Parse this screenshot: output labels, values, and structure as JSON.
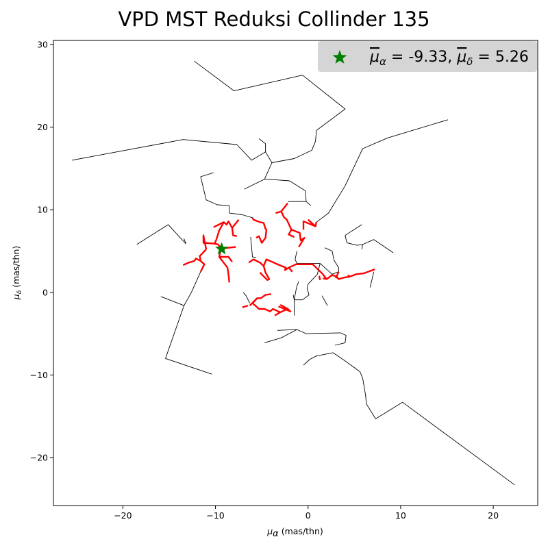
{
  "chart_data": {
    "type": "line",
    "title": "VPD MST Reduksi Collinder 135",
    "xlabel_symbol": "μ",
    "xlabel_sub": "α",
    "xlabel_unit": "(mas/thn)",
    "ylabel_symbol": "μ",
    "ylabel_sub": "δ",
    "ylabel_unit": "(mas/thn)",
    "xlim": [
      -27.5,
      24.8
    ],
    "ylim": [
      -25.8,
      30.5
    ],
    "xticks": [
      -20,
      -10,
      0,
      10,
      20
    ],
    "yticks": [
      -20,
      -10,
      0,
      10,
      20,
      30
    ],
    "xtick_labels": [
      "−20",
      "−10",
      "0",
      "10",
      "20"
    ],
    "ytick_labels": [
      "−20",
      "−10",
      "0",
      "10",
      "20",
      "30"
    ],
    "grid": false,
    "legend_position": "top-right",
    "legend": {
      "pma_label": "μ",
      "pma_sub": "α",
      "pma_value": "-9.33",
      "pmd_label": "μ",
      "pmd_sub": "δ",
      "pmd_value": "5.26"
    },
    "colors": {
      "outer_edges": "#000000",
      "core_edges": "#ff0000",
      "center_marker": "#008000",
      "legend_bg": "#d3d3d3"
    },
    "center": {
      "x": -9.33,
      "y": 5.26
    },
    "outer_edges": [
      [
        [
          -12.3,
          28.0
        ],
        [
          -8.0,
          24.4
        ],
        [
          -0.6,
          26.3
        ],
        [
          4.0,
          22.2
        ],
        [
          0.9,
          19.6
        ],
        [
          0.8,
          18.3
        ],
        [
          0.4,
          17.2
        ],
        [
          -1.5,
          16.2
        ],
        [
          -3.9,
          15.7
        ],
        [
          -4.6,
          17.0
        ],
        [
          -6.1,
          16.0
        ],
        [
          -7.7,
          17.9
        ],
        [
          -13.5,
          18.5
        ],
        [
          -25.5,
          16.0
        ]
      ],
      [
        [
          -3.9,
          15.7
        ],
        [
          -4.7,
          13.7
        ],
        [
          -6.9,
          12.5
        ]
      ],
      [
        [
          -4.6,
          17.0
        ],
        [
          -4.6,
          18.0
        ],
        [
          -5.3,
          18.6
        ]
      ],
      [
        [
          -4.7,
          13.7
        ],
        [
          -3.2,
          13.6
        ],
        [
          -2.0,
          13.5
        ],
        [
          -0.3,
          12.3
        ],
        [
          -0.2,
          11.0
        ],
        [
          0.3,
          10.5
        ]
      ],
      [
        [
          -10.2,
          14.5
        ],
        [
          -11.6,
          14.0
        ],
        [
          -11.0,
          11.2
        ],
        [
          -9.8,
          10.6
        ],
        [
          -8.5,
          10.5
        ],
        [
          -8.5,
          9.6
        ]
      ],
      [
        [
          -0.2,
          11.0
        ],
        [
          -2.2,
          11.0
        ]
      ],
      [
        [
          15.1,
          20.9
        ],
        [
          8.6,
          18.7
        ],
        [
          5.9,
          17.4
        ],
        [
          4.0,
          12.9
        ],
        [
          2.2,
          9.6
        ],
        [
          0.9,
          8.5
        ]
      ],
      [
        [
          5.8,
          8.2
        ],
        [
          4.0,
          6.9
        ]
      ],
      [
        [
          4.0,
          6.9
        ],
        [
          4.2,
          6.0
        ]
      ],
      [
        [
          4.2,
          6.0
        ],
        [
          5.3,
          5.7
        ],
        [
          5.9,
          5.8
        ],
        [
          7.1,
          6.4
        ],
        [
          9.2,
          4.8
        ]
      ],
      [
        [
          5.8,
          5.2
        ],
        [
          5.9,
          5.8
        ]
      ],
      [
        [
          1.8,
          5.4
        ],
        [
          2.6,
          5.0
        ],
        [
          2.8,
          3.9
        ],
        [
          3.3,
          3.0
        ],
        [
          3.3,
          2.5
        ]
      ],
      [
        [
          3.3,
          2.5
        ],
        [
          2.6,
          2.2
        ]
      ],
      [
        [
          2.6,
          2.2
        ],
        [
          1.3,
          3.5
        ],
        [
          -1.2,
          3.5
        ]
      ],
      [
        [
          7.1,
          2.5
        ],
        [
          6.7,
          0.6
        ]
      ],
      [
        [
          -13.4,
          6.5
        ],
        [
          -13.2,
          5.9
        ],
        [
          -13.8,
          6.6
        ],
        [
          -15.1,
          8.2
        ],
        [
          -18.5,
          5.8
        ]
      ],
      [
        [
          -11.6,
          2.5
        ],
        [
          -12.6,
          0.0
        ],
        [
          -13.4,
          -1.6
        ],
        [
          -15.9,
          -0.5
        ]
      ],
      [
        [
          -13.4,
          -1.6
        ],
        [
          -15.4,
          -8.0
        ],
        [
          -10.4,
          -9.9
        ]
      ],
      [
        [
          -8.5,
          9.6
        ],
        [
          -7.1,
          9.4
        ],
        [
          -5.9,
          9.0
        ]
      ],
      [
        [
          -6.2,
          6.7
        ],
        [
          -6.0,
          4.3
        ],
        [
          -5.6,
          4.2
        ]
      ],
      [
        [
          -3.3,
          -4.6
        ],
        [
          -1.2,
          -4.5
        ],
        [
          -0.2,
          -5.0
        ],
        [
          3.5,
          -4.9
        ],
        [
          4.1,
          -5.2
        ],
        [
          4.0,
          -6.1
        ],
        [
          2.9,
          -6.4
        ]
      ],
      [
        [
          -1.2,
          -4.5
        ],
        [
          -2.9,
          -5.5
        ],
        [
          -4.7,
          -6.1
        ]
      ],
      [
        [
          2.7,
          -7.3
        ],
        [
          0.9,
          -7.7
        ],
        [
          0.2,
          -8.1
        ],
        [
          -0.5,
          -8.8
        ]
      ],
      [
        [
          2.7,
          -7.3
        ],
        [
          4.0,
          -8.3
        ],
        [
          5.6,
          -9.6
        ],
        [
          5.9,
          -10.4
        ],
        [
          6.2,
          -12.4
        ],
        [
          6.3,
          -13.5
        ],
        [
          7.3,
          -15.3
        ],
        [
          10.2,
          -13.3
        ],
        [
          22.3,
          -23.3
        ]
      ],
      [
        [
          -1.6,
          -0.3
        ],
        [
          -1.5,
          -0.9
        ],
        [
          -1.3,
          0.3
        ],
        [
          -1.2,
          0.8
        ]
      ],
      [
        [
          -1.2,
          0.8
        ],
        [
          -1.0,
          1.3
        ]
      ],
      [
        [
          -1.5,
          -0.9
        ],
        [
          -0.6,
          -0.9
        ],
        [
          0.1,
          -0.3
        ],
        [
          -0.1,
          0.5
        ],
        [
          0.0,
          1.0
        ],
        [
          1.0,
          2.2
        ],
        [
          1.3,
          3.5
        ]
      ],
      [
        [
          -1.5,
          -0.9
        ],
        [
          -1.5,
          -2.8
        ]
      ],
      [
        [
          -6.3,
          -1.3
        ],
        [
          -6.7,
          -0.4
        ],
        [
          -7.0,
          0.0
        ]
      ],
      [
        [
          1.5,
          -0.4
        ],
        [
          2.1,
          -1.6
        ]
      ],
      [
        [
          -1.2,
          3.5
        ],
        [
          -1.4,
          4.0
        ],
        [
          -1.2,
          5.0
        ]
      ]
    ],
    "core_edges": [
      [
        [
          -10.2,
          7.9
        ],
        [
          -9.1,
          8.5
        ],
        [
          -8.8,
          8.2
        ],
        [
          -8.6,
          8.6
        ],
        [
          -8.2,
          7.8
        ],
        [
          -7.5,
          8.8
        ]
      ],
      [
        [
          -9.1,
          8.5
        ],
        [
          -9.6,
          7.5
        ],
        [
          -9.9,
          6.4
        ]
      ],
      [
        [
          -8.2,
          7.8
        ],
        [
          -8.1,
          6.9
        ],
        [
          -7.7,
          6.8
        ]
      ],
      [
        [
          -9.9,
          6.4
        ],
        [
          -10.1,
          5.9
        ],
        [
          -9.7,
          5.8
        ],
        [
          -9.4,
          5.3
        ],
        [
          -8.6,
          5.4
        ],
        [
          -7.8,
          5.5
        ]
      ],
      [
        [
          -10.1,
          5.9
        ],
        [
          -11.3,
          6.0
        ],
        [
          -11.3,
          6.9
        ],
        [
          -11.0,
          5.2
        ]
      ],
      [
        [
          -9.4,
          5.3
        ],
        [
          -9.6,
          4.3
        ],
        [
          -8.6,
          4.3
        ],
        [
          -8.2,
          3.7
        ]
      ],
      [
        [
          -9.6,
          4.3
        ],
        [
          -8.7,
          3.0
        ],
        [
          -8.6,
          2.2
        ],
        [
          -8.5,
          1.2
        ]
      ],
      [
        [
          -11.0,
          5.2
        ],
        [
          -11.7,
          4.4
        ],
        [
          -11.6,
          3.8
        ],
        [
          -11.2,
          3.4
        ],
        [
          -11.6,
          2.5
        ]
      ],
      [
        [
          -11.6,
          3.8
        ],
        [
          -12.1,
          4.1
        ],
        [
          -12.3,
          3.8
        ],
        [
          -12.9,
          3.6
        ],
        [
          -13.5,
          3.3
        ]
      ],
      [
        [
          -6.0,
          9.0
        ],
        [
          -5.9,
          8.8
        ],
        [
          -5.2,
          8.5
        ],
        [
          -4.8,
          8.4
        ],
        [
          -4.6,
          7.7
        ],
        [
          -4.5,
          7.6
        ],
        [
          -4.6,
          6.6
        ],
        [
          -5.0,
          6.0
        ],
        [
          -5.3,
          6.8
        ],
        [
          -5.6,
          6.6
        ]
      ],
      [
        [
          -6.4,
          3.6
        ],
        [
          -5.9,
          4.0
        ],
        [
          -5.2,
          3.6
        ],
        [
          -4.8,
          3.2
        ],
        [
          -4.6,
          2.4
        ],
        [
          -4.2,
          1.6
        ],
        [
          -4.4,
          1.5
        ],
        [
          -5.2,
          2.4
        ]
      ],
      [
        [
          -4.8,
          3.2
        ],
        [
          -4.5,
          4.0
        ],
        [
          -3.1,
          3.3
        ],
        [
          -2.4,
          3.0
        ],
        [
          -2.5,
          2.7
        ],
        [
          -2.1,
          3.0
        ],
        [
          -1.7,
          2.5
        ]
      ],
      [
        [
          -2.1,
          3.0
        ],
        [
          -1.3,
          3.4
        ],
        [
          0.5,
          3.4
        ],
        [
          1.6,
          2.2
        ],
        [
          2.0,
          1.6
        ],
        [
          1.6,
          1.7
        ]
      ],
      [
        [
          2.0,
          1.6
        ],
        [
          2.6,
          2.1
        ],
        [
          3.1,
          1.9
        ],
        [
          3.3,
          1.6
        ],
        [
          3.9,
          1.8
        ],
        [
          4.5,
          1.9
        ],
        [
          4.3,
          2.1
        ]
      ],
      [
        [
          4.5,
          1.9
        ],
        [
          5.2,
          2.2
        ],
        [
          6.0,
          2.3
        ],
        [
          7.2,
          2.8
        ]
      ],
      [
        [
          -2.2,
          10.8
        ],
        [
          -2.9,
          9.8
        ],
        [
          -3.5,
          9.6
        ]
      ],
      [
        [
          -2.9,
          9.8
        ],
        [
          -2.6,
          9.1
        ],
        [
          -2.3,
          8.8
        ],
        [
          -1.8,
          7.6
        ],
        [
          -0.9,
          7.2
        ],
        [
          -0.8,
          6.3
        ],
        [
          -0.4,
          6.6
        ],
        [
          -1.0,
          5.5
        ]
      ],
      [
        [
          -1.8,
          7.6
        ],
        [
          -2.1,
          7.0
        ],
        [
          -1.5,
          6.7
        ]
      ],
      [
        [
          0.9,
          8.5
        ],
        [
          0.8,
          8.0
        ],
        [
          0.0,
          8.8
        ]
      ],
      [
        [
          0.8,
          8.0
        ],
        [
          -0.5,
          8.6
        ],
        [
          -0.5,
          7.6
        ]
      ],
      [
        [
          3.3,
          2.5
        ],
        [
          3.0,
          1.7
        ]
      ],
      [
        [
          1.3,
          1.5
        ],
        [
          1.2,
          2.0
        ]
      ],
      [
        [
          -6.3,
          -1.6
        ],
        [
          -5.5,
          -0.7
        ],
        [
          -5.1,
          -0.7
        ],
        [
          -4.6,
          -0.3
        ],
        [
          -4.0,
          -0.2
        ]
      ],
      [
        [
          -5.5,
          -0.7
        ],
        [
          -6.0,
          -1.3
        ],
        [
          -5.3,
          -2.0
        ],
        [
          -4.7,
          -2.0
        ],
        [
          -4.1,
          -2.3
        ],
        [
          -3.8,
          -2.0
        ],
        [
          -3.0,
          -2.4
        ],
        [
          -3.6,
          -2.8
        ]
      ],
      [
        [
          -3.0,
          -2.4
        ],
        [
          -2.2,
          -2.0
        ],
        [
          -3.0,
          -1.5
        ]
      ],
      [
        [
          -7.1,
          -1.8
        ],
        [
          -6.5,
          -1.6
        ]
      ],
      [
        [
          -2.2,
          -2.0
        ],
        [
          -1.9,
          -2.3
        ],
        [
          -3.2,
          -1.7
        ]
      ]
    ]
  }
}
